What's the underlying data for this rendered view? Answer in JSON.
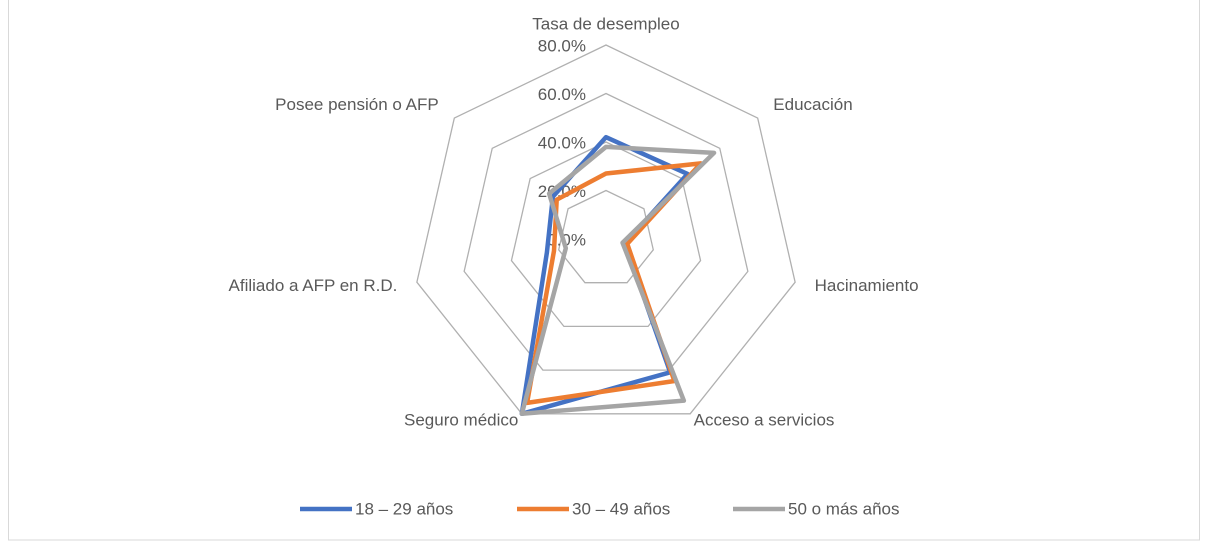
{
  "chart_data": {
    "type": "radar",
    "categories": [
      "Tasa de desempleo",
      "Educación",
      "Hacinamiento",
      "Acceso a servicios",
      "Seguro médico",
      "Afiliado a AFP en R.D.",
      "Posee pensión o AFP"
    ],
    "series": [
      {
        "name": "18 – 29 años",
        "color": "#4472c4",
        "values": [
          42,
          43,
          8,
          61,
          80,
          25,
          28
        ]
      },
      {
        "name": "30 – 49 años",
        "color": "#ed7d31",
        "values": [
          27,
          50,
          9,
          65,
          75,
          22,
          26
        ]
      },
      {
        "name": "50 o más años",
        "color": "#a5a5a5",
        "values": [
          38,
          57,
          7,
          74,
          80,
          17,
          30
        ]
      }
    ],
    "ylim": [
      0,
      80
    ],
    "yticks": [
      {
        "value": 0,
        "label": "0.0%"
      },
      {
        "value": 20,
        "label": "20.0%"
      },
      {
        "value": 40,
        "label": "40.0%"
      },
      {
        "value": 60,
        "label": "60.0%"
      },
      {
        "value": 80,
        "label": "80.0%"
      }
    ],
    "grid": true,
    "legend": "bottom"
  }
}
